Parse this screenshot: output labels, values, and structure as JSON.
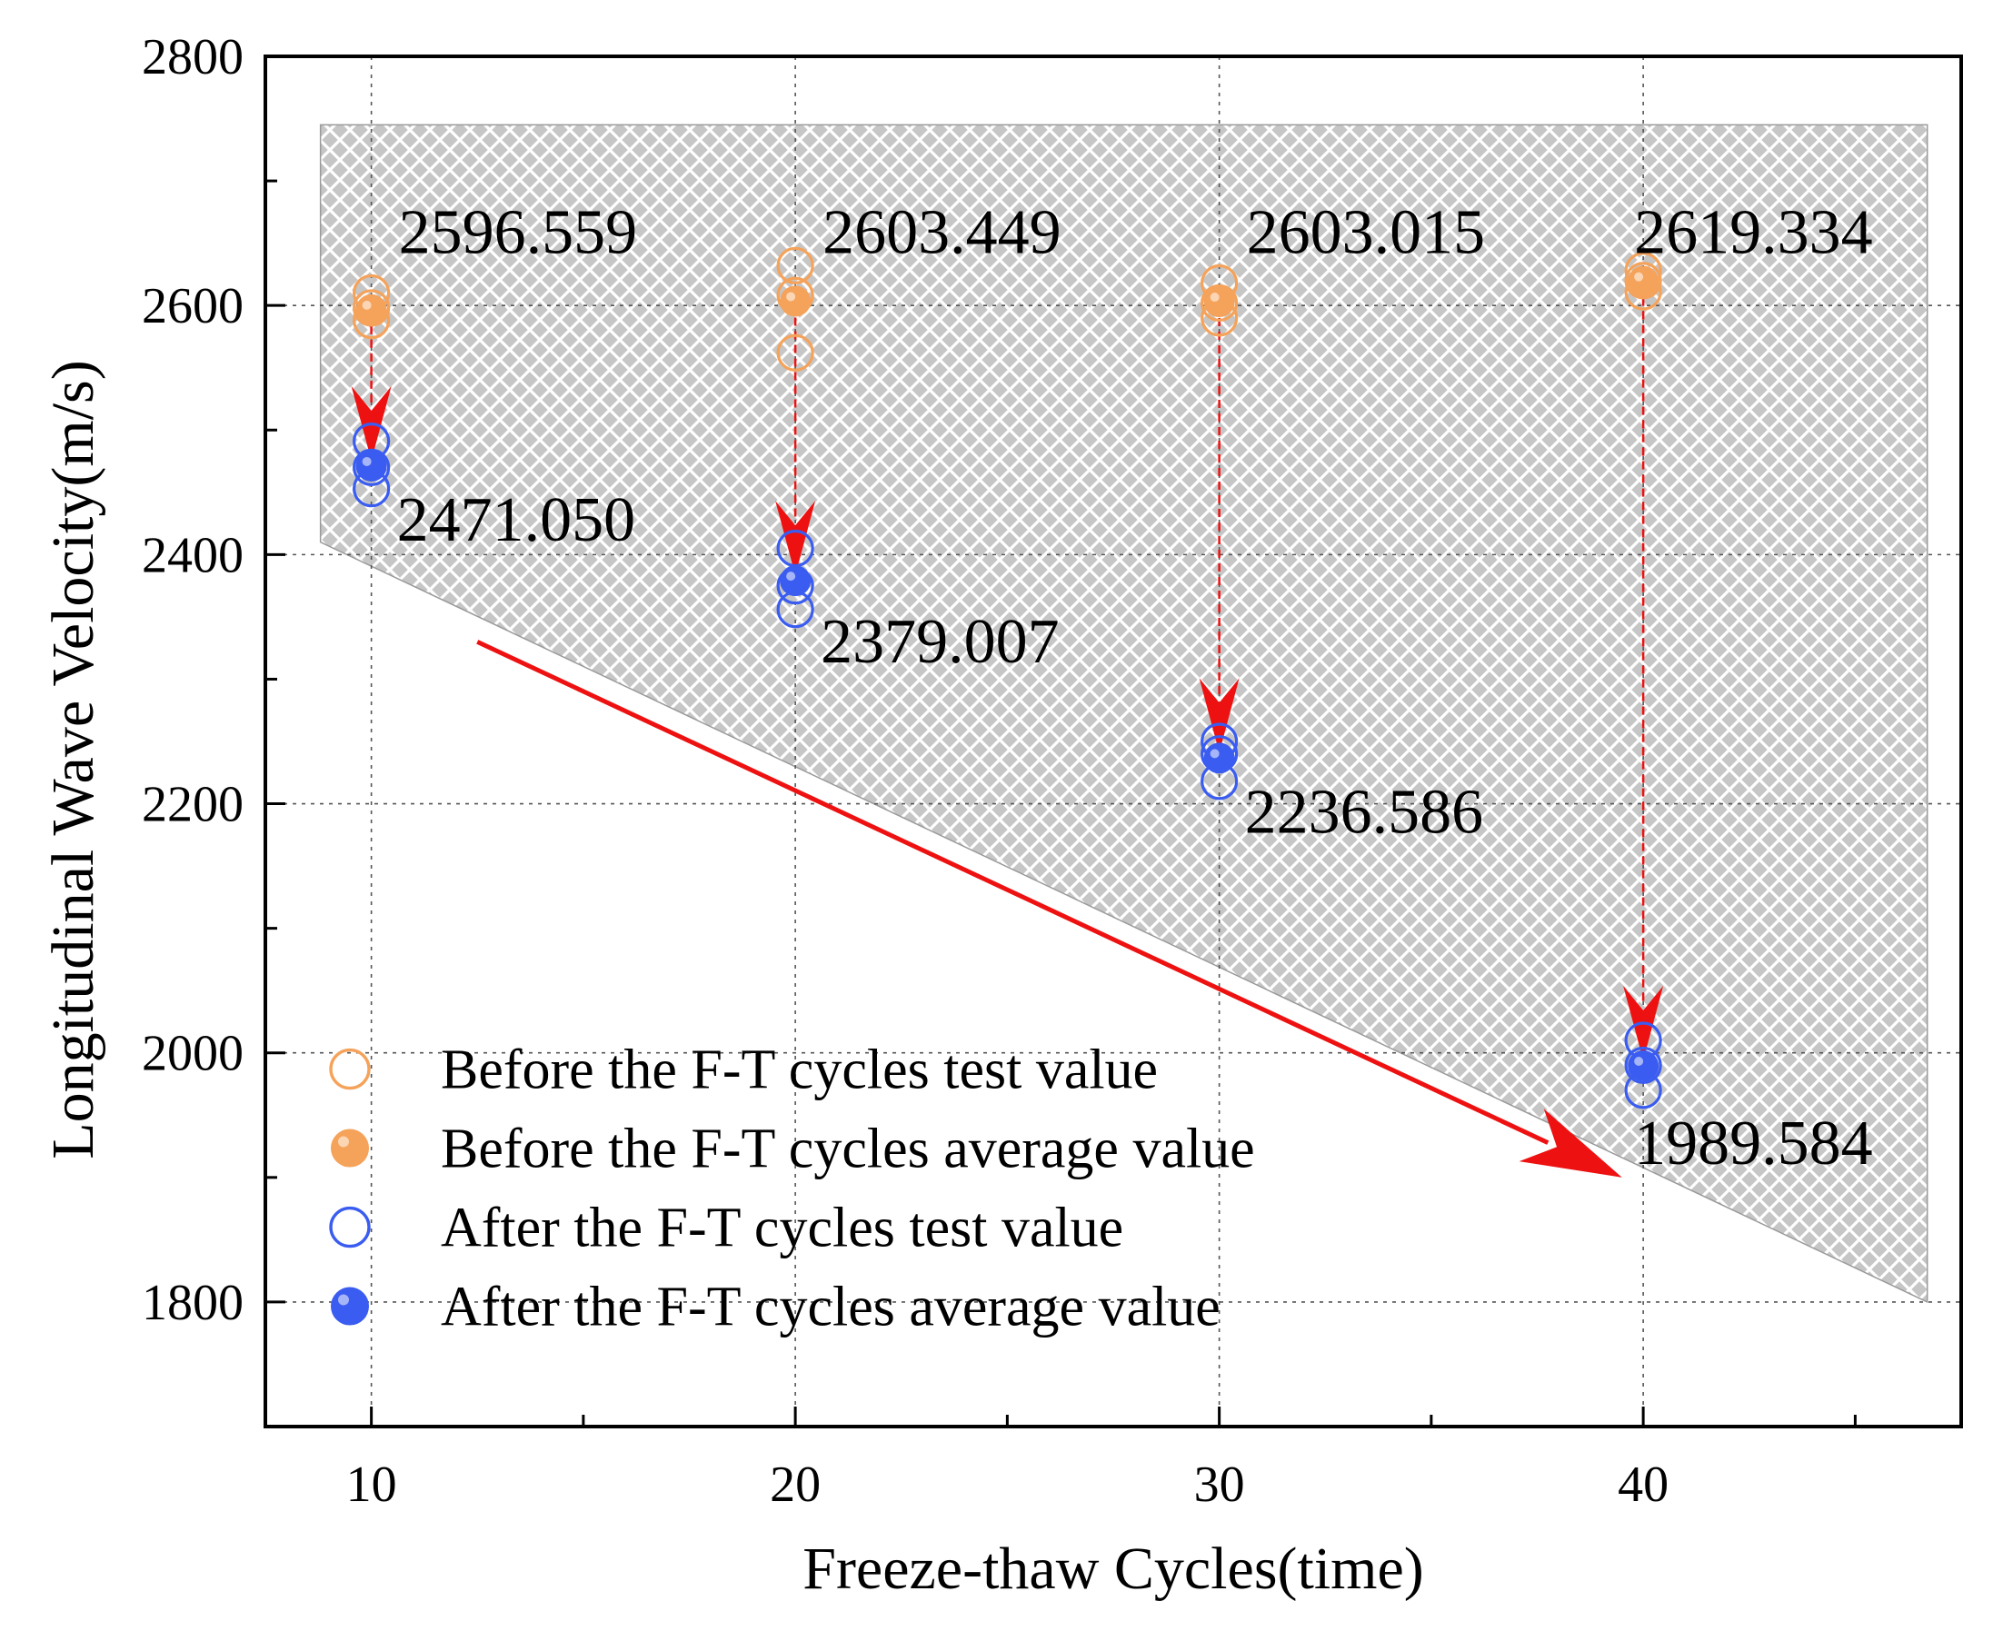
{
  "chart_data": {
    "type": "scatter",
    "title": "",
    "xlabel": "Freeze-thaw Cycles(time)",
    "ylabel": "Longitudinal Wave Velocity(m/s)",
    "xlim": [
      7.5,
      47.5
    ],
    "ylim": [
      1700,
      2800
    ],
    "x_ticks": [
      10,
      20,
      30,
      40
    ],
    "x_tick_labels": [
      "10",
      "20",
      "30",
      "40"
    ],
    "y_ticks": [
      1800,
      2000,
      2200,
      2400,
      2600,
      2800
    ],
    "y_tick_labels": [
      "1800",
      "2000",
      "2200",
      "2400",
      "2600",
      "2800"
    ],
    "grid": true,
    "legend_position": "bottom-left",
    "colors": {
      "before": "#f5a25a",
      "after": "#3a5cf0",
      "arrow": "#ee1111",
      "band": "#c8c8c8"
    },
    "shaded_region": {
      "description_free": true,
      "corners": [
        [
          8.8,
          2745
        ],
        [
          46.7,
          2745
        ],
        [
          46.7,
          1800
        ],
        [
          8.8,
          2410
        ]
      ]
    },
    "trend_arrow": {
      "from": [
        12.5,
        2330
      ],
      "to": [
        39.5,
        1900
      ]
    },
    "series": [
      {
        "name": "Before the F-T cycles test value",
        "marker": "open-circle",
        "color": "#f5a25a",
        "x": [
          10,
          10,
          10,
          20,
          20,
          20,
          30,
          30,
          30,
          40,
          40,
          40
        ],
        "y": [
          2610,
          2598,
          2588,
          2632,
          2608,
          2562,
          2618,
          2602,
          2590,
          2628,
          2620,
          2611
        ]
      },
      {
        "name": "Before the F-T cycles average value",
        "marker": "filled-circle",
        "color": "#f5a25a",
        "x": [
          10,
          20,
          30,
          40
        ],
        "y": [
          2596.559,
          2603.449,
          2603.015,
          2619.334
        ]
      },
      {
        "name": "After the F-T cycles test value",
        "marker": "open-circle",
        "color": "#3a5cf0",
        "x": [
          10,
          10,
          10,
          20,
          20,
          20,
          30,
          30,
          30,
          40,
          40,
          40
        ],
        "y": [
          2491,
          2470,
          2453,
          2405,
          2375,
          2356,
          2250,
          2240,
          2218,
          2010,
          1990,
          1970
        ]
      },
      {
        "name": "After the F-T cycles average value",
        "marker": "filled-circle",
        "color": "#3a5cf0",
        "x": [
          10,
          20,
          30,
          40
        ],
        "y": [
          2471.05,
          2379.007,
          2236.586,
          1989.584
        ]
      }
    ],
    "annotations": {
      "before": [
        "2596.559",
        "2603.449",
        "2603.015",
        "2619.334"
      ],
      "after": [
        "2471.050",
        "2379.007",
        "2236.586",
        "1989.584"
      ]
    }
  }
}
